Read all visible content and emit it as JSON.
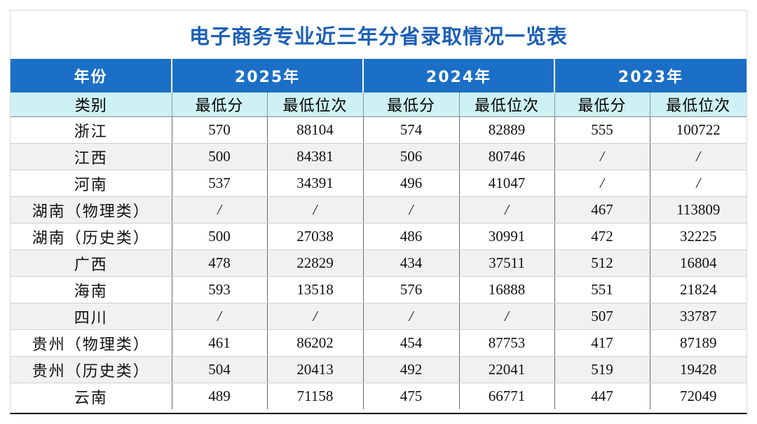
{
  "title": "电子商务专业近三年分省录取情况一览表",
  "header": {
    "year_label": "年份",
    "years": [
      "2025年",
      "2024年",
      "2023年"
    ],
    "category_label": "类别",
    "subcols": [
      "最低分",
      "最低位次",
      "最低分",
      "最低位次",
      "最低分",
      "最低位次"
    ]
  },
  "rows": [
    {
      "province": "浙江",
      "cells": [
        "570",
        "88104",
        "574",
        "82889",
        "555",
        "100722"
      ]
    },
    {
      "province": "江西",
      "cells": [
        "500",
        "84381",
        "506",
        "80746",
        "/",
        "/"
      ]
    },
    {
      "province": "河南",
      "cells": [
        "537",
        "34391",
        "496",
        "41047",
        "/",
        "/"
      ]
    },
    {
      "province": "湖南（物理类）",
      "cells": [
        "/",
        "/",
        "/",
        "/",
        "467",
        "113809"
      ]
    },
    {
      "province": "湖南（历史类）",
      "cells": [
        "500",
        "27038",
        "486",
        "30991",
        "472",
        "32225"
      ]
    },
    {
      "province": "广西",
      "cells": [
        "478",
        "22829",
        "434",
        "37511",
        "512",
        "16804"
      ]
    },
    {
      "province": "海南",
      "cells": [
        "593",
        "13518",
        "576",
        "16888",
        "551",
        "21824"
      ]
    },
    {
      "province": "四川",
      "cells": [
        "/",
        "/",
        "/",
        "/",
        "507",
        "33787"
      ]
    },
    {
      "province": "贵州（物理类）",
      "cells": [
        "461",
        "86202",
        "454",
        "87753",
        "417",
        "87189"
      ]
    },
    {
      "province": "贵州（历史类）",
      "cells": [
        "504",
        "20413",
        "492",
        "22041",
        "519",
        "19428"
      ]
    },
    {
      "province": "云南",
      "cells": [
        "489",
        "71158",
        "475",
        "66771",
        "447",
        "72049"
      ]
    }
  ]
}
